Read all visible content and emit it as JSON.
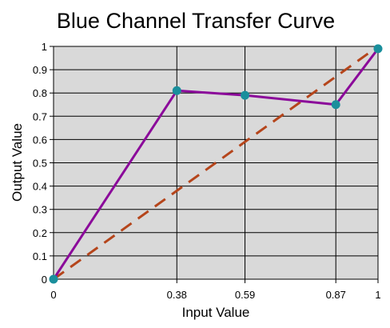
{
  "chart_data": {
    "type": "line",
    "title": "Blue Channel Transfer Curve",
    "xlabel": "Input Value",
    "ylabel": "Output Value",
    "xlim": [
      0,
      1
    ],
    "ylim": [
      0,
      1
    ],
    "x_ticks": [
      {
        "value": 0,
        "label": "0"
      },
      {
        "value": 0.38,
        "label": "0.38"
      },
      {
        "value": 0.59,
        "label": "0.59"
      },
      {
        "value": 0.87,
        "label": "0.87"
      },
      {
        "value": 1,
        "label": "1"
      }
    ],
    "y_ticks": [
      {
        "value": 0,
        "label": "0"
      },
      {
        "value": 0.1,
        "label": "0.1"
      },
      {
        "value": 0.2,
        "label": "0.2"
      },
      {
        "value": 0.3,
        "label": "0.3"
      },
      {
        "value": 0.4,
        "label": "0.4"
      },
      {
        "value": 0.5,
        "label": "0.5"
      },
      {
        "value": 0.6,
        "label": "0.6"
      },
      {
        "value": 0.7,
        "label": "0.7"
      },
      {
        "value": 0.8,
        "label": "0.8"
      },
      {
        "value": 0.9,
        "label": "0.9"
      },
      {
        "value": 1,
        "label": "1"
      }
    ],
    "grid": true,
    "legend": "none",
    "series": [
      {
        "style": "solid",
        "color": "#8B0A9A",
        "marker_color": "#1A8F9C",
        "x": [
          0,
          0.38,
          0.59,
          0.87,
          1
        ],
        "y": [
          0,
          0.81,
          0.79,
          0.75,
          0.99
        ]
      },
      {
        "style": "dashed",
        "color": "#B5451B",
        "x": [
          0,
          1
        ],
        "y": [
          0,
          1
        ]
      }
    ],
    "colors": {
      "plot_background": "#D9D9D9",
      "grid": "#000000"
    }
  }
}
